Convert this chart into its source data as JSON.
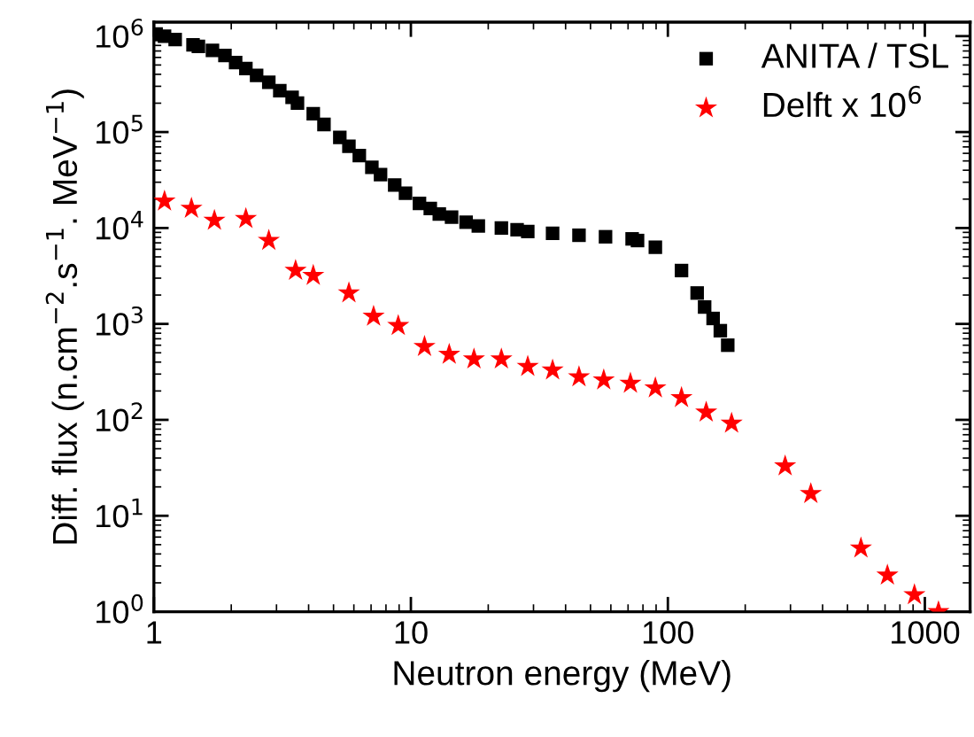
{
  "chart_data": {
    "type": "scatter",
    "xlabel": "Neutron energy (MeV)",
    "ylabel": "Diff. flux (n.cm$^{−2}$.s$^{−1}$. MeV$^{−1}$)",
    "log": "xy",
    "xlim": [
      1,
      1500
    ],
    "ylim": [
      1,
      1400000
    ],
    "xticks": [
      1,
      10,
      100,
      1000
    ],
    "yticks": [
      {
        "value": 1,
        "label": "10$^{0}$"
      },
      {
        "value": 10,
        "label": "10$^{1}$"
      },
      {
        "value": 100,
        "label": "10$^{2}$"
      },
      {
        "value": 1000,
        "label": "10$^{3}$"
      },
      {
        "value": 10000,
        "label": "10$^{4}$"
      },
      {
        "value": 100000,
        "label": "10$^{5}$"
      },
      {
        "value": 1000000,
        "label": "10$^{6}$"
      }
    ],
    "grid": false,
    "legend": "top right",
    "series": [
      {
        "name": "ANITA / TSL",
        "color": "#000000",
        "marker": "square",
        "x": [
          1.02,
          1.1,
          1.21,
          1.42,
          1.49,
          1.69,
          1.89,
          2.08,
          2.28,
          2.51,
          2.8,
          3.09,
          3.45,
          3.62,
          4.17,
          4.59,
          5.29,
          5.74,
          6.3,
          7.05,
          7.62,
          8.65,
          9.53,
          10.8,
          11.9,
          12.9,
          14.4,
          16.4,
          18.3,
          22.5,
          25.9,
          28.5,
          35.6,
          45.1,
          57.2,
          72.6,
          76.2,
          89.4,
          113,
          130,
          139,
          150,
          160,
          171
        ],
        "values": [
          1050000,
          1000000,
          920000,
          810000,
          780000,
          710000,
          630000,
          530000,
          460000,
          390000,
          330000,
          270000,
          230000,
          200000,
          155000,
          120000,
          88000,
          71000,
          57000,
          43000,
          36000,
          28000,
          23000,
          18000,
          16000,
          14000,
          13000,
          11500,
          10500,
          10000,
          9600,
          9200,
          8800,
          8400,
          8100,
          7700,
          7400,
          6300,
          3600,
          2100,
          1500,
          1140,
          850,
          600
        ]
      },
      {
        "name": "Delft x 10$^{6}$",
        "color": "#ff0000",
        "marker": "star",
        "x": [
          1.1,
          1.4,
          1.72,
          2.28,
          2.8,
          3.56,
          4.17,
          5.74,
          7.16,
          8.93,
          11.3,
          14.1,
          17.6,
          22.5,
          28.5,
          35.6,
          45.1,
          56.3,
          71.5,
          89.4,
          113,
          141,
          177,
          286,
          360,
          564,
          715,
          911,
          1130
        ],
        "values": [
          19000,
          16000,
          12000,
          12500,
          7400,
          3600,
          3200,
          2100,
          1200,
          960,
          580,
          480,
          430,
          430,
          360,
          330,
          280,
          260,
          240,
          215,
          170,
          120,
          92,
          33,
          17,
          4.6,
          2.4,
          1.5,
          1.0
        ]
      }
    ]
  }
}
